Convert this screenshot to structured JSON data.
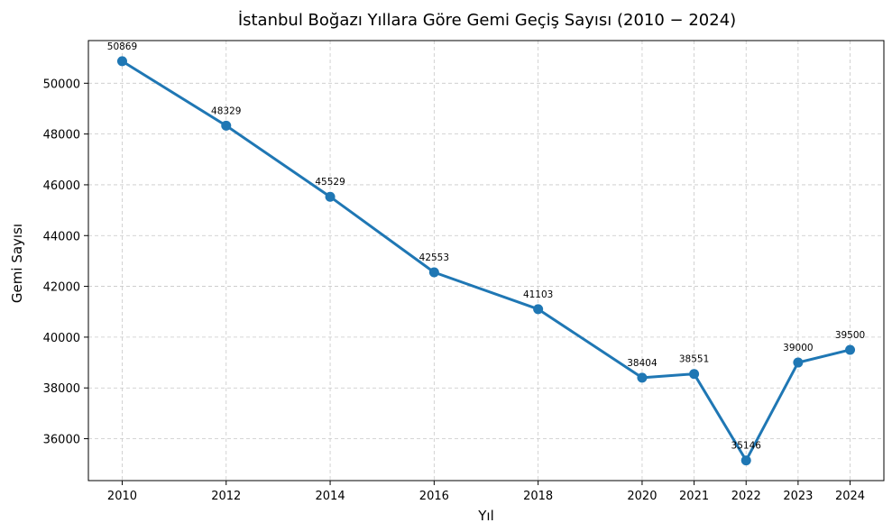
{
  "chart_data": {
    "type": "line",
    "title": "İstanbul Boğazı Yıllara Göre Gemi Geçiş Sayısı (2010 − 2024)",
    "xlabel": "Yıl",
    "ylabel": "Gemi Sayısı",
    "x": [
      2010,
      2012,
      2014,
      2016,
      2018,
      2020,
      2021,
      2022,
      2023,
      2024
    ],
    "xticks": [
      "2010",
      "2012",
      "2014",
      "2016",
      "2018",
      "2020",
      "2021",
      "2022",
      "2023",
      "2024"
    ],
    "yticks": [
      36000,
      38000,
      40000,
      42000,
      44000,
      46000,
      48000,
      50000
    ],
    "ylim": [
      34350,
      51680
    ],
    "xlim": [
      2009.35,
      2024.65
    ],
    "series": [
      {
        "values": [
          50869,
          48329,
          45529,
          42553,
          41103,
          38404,
          38551,
          35146,
          39000,
          39500
        ],
        "color": "#1f77b4"
      }
    ],
    "data_labels": true,
    "grid": true,
    "legend": false
  }
}
